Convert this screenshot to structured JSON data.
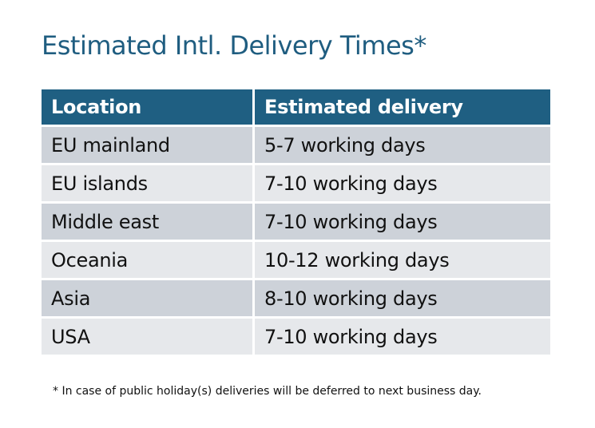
{
  "title": "Estimated Intl. Delivery Times*",
  "table": {
    "headers": [
      "Location",
      "Estimated delivery"
    ],
    "rows": [
      [
        "EU mainland",
        "5-7 working days"
      ],
      [
        "EU islands",
        "7-10 working days"
      ],
      [
        "Middle east",
        "7-10 working days"
      ],
      [
        "Oceania",
        "10-12 working days"
      ],
      [
        "Asia",
        "8-10 working days"
      ],
      [
        "USA",
        "7-10 working days"
      ]
    ]
  },
  "footnote": "* In case of public holiday(s) deliveries will be deferred to next business day.",
  "colors": {
    "header": "#1f5f82",
    "row_dark": "#cdd2d9",
    "row_light": "#e6e8eb",
    "title": "#1f5d80"
  }
}
